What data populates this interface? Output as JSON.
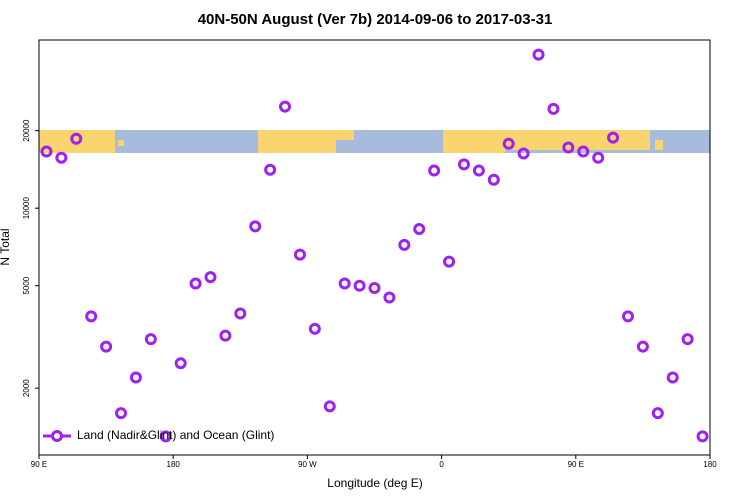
{
  "chart_data": {
    "type": "scatter",
    "title": "40N-50N August (Ver 7b)   2014-09-06 to 2017-03-31",
    "x_label": "Longitude (deg E)",
    "y_label": "N Total",
    "log_y": true,
    "legend": "bottom-left",
    "xlim": [
      90,
      540
    ],
    "xticks": [
      {
        "value": 90,
        "label": "90 E"
      },
      180,
      {
        "value": 270,
        "label": "90 W"
      },
      {
        "value": 360,
        "label": "0"
      },
      {
        "value": 450,
        "label": "90 E"
      },
      {
        "value": 540,
        "label": "180"
      }
    ],
    "ylim": [
      1100,
      45000
    ],
    "yticks": [
      2000,
      5000,
      10000,
      20000
    ],
    "series": [
      {
        "name": "Land (Nadir&Glint) and Ocean (Glint)",
        "color": "#a020f0",
        "x": [
          95,
          105,
          115,
          125,
          135,
          145,
          155,
          165,
          175,
          185,
          195,
          205,
          215,
          225,
          235,
          245,
          255,
          265,
          275,
          285,
          295,
          305,
          315,
          325,
          335,
          345,
          355,
          365,
          375,
          385,
          395,
          405,
          415,
          425,
          435,
          445,
          455,
          465,
          475,
          485,
          495,
          505,
          515,
          525,
          535
        ],
        "values": [
          16600,
          15700,
          18600,
          3800,
          2900,
          1600,
          2200,
          3100,
          1300,
          2500,
          5100,
          5400,
          3200,
          3900,
          8500,
          14100,
          24800,
          6600,
          3400,
          1700,
          5100,
          5000,
          4900,
          4500,
          7200,
          8300,
          14000,
          6200,
          14800,
          14000,
          12900,
          17800,
          16300,
          39500,
          24300,
          17200,
          16600,
          15700,
          18800,
          3800,
          2900,
          1600,
          2200,
          3100,
          1300
        ]
      }
    ]
  }
}
